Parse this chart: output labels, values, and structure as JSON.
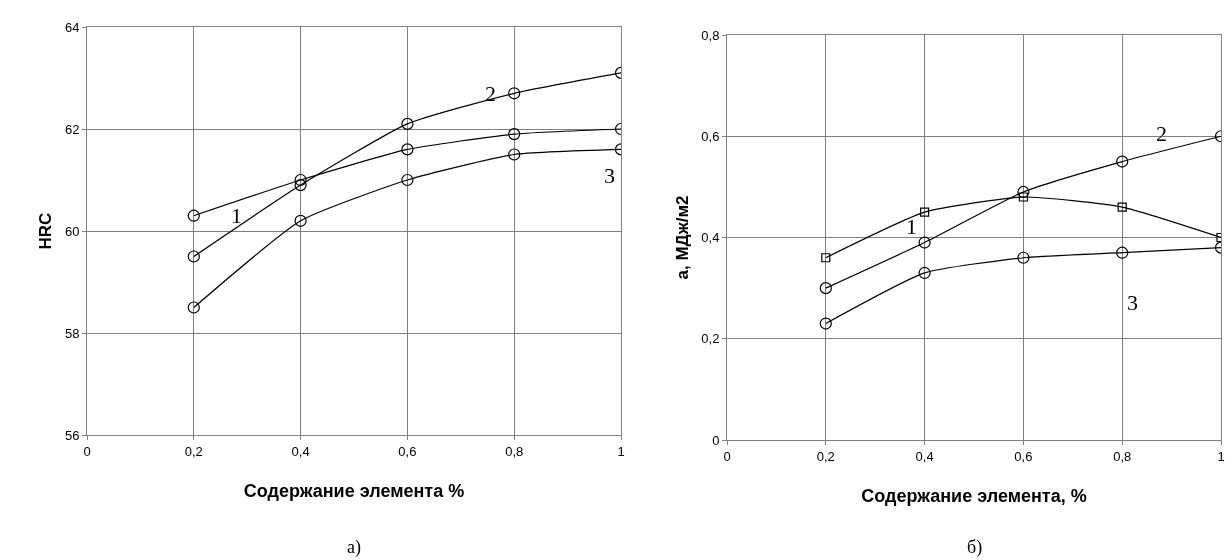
{
  "chart_data": [
    {
      "type": "line",
      "xlabel": "Содержание элемента %",
      "ylabel": "HRC",
      "x": [
        0.2,
        0.4,
        0.6,
        0.8,
        1.0
      ],
      "series": [
        {
          "name": "1",
          "color": "#000000",
          "marker": "circle",
          "values": [
            60.3,
            61.0,
            61.6,
            61.9,
            62.0
          ]
        },
        {
          "name": "2",
          "color": "#000000",
          "marker": "circle",
          "values": [
            59.5,
            60.9,
            62.1,
            62.7,
            63.1
          ]
        },
        {
          "name": "3",
          "color": "#000000",
          "marker": "circle",
          "values": [
            58.5,
            60.2,
            61.0,
            61.5,
            61.6
          ]
        }
      ],
      "xlim": [
        0,
        1
      ],
      "xticks": [
        0,
        {
          "value": 0.2,
          "label": "0,2"
        },
        {
          "value": 0.4,
          "label": "0,4"
        },
        {
          "value": 0.6,
          "label": "0,6"
        },
        {
          "value": 0.8,
          "label": "0,8"
        },
        1
      ],
      "ylim": [
        56,
        64
      ],
      "yticks": [
        56,
        58,
        60,
        62,
        64
      ],
      "grid": true,
      "line_style": "solid",
      "annotations": [
        "а)"
      ]
    },
    {
      "type": "line",
      "xlabel": "Содержание элемента, %",
      "ylabel": "а, МДж/м2",
      "x": [
        0.2,
        0.4,
        0.6,
        0.8,
        1.0
      ],
      "series": [
        {
          "name": "1",
          "color": "#000000",
          "marker": "square",
          "values": [
            0.36,
            0.45,
            0.48,
            0.46,
            0.4
          ]
        },
        {
          "name": "2",
          "color": "#000000",
          "marker": "circle",
          "values": [
            0.3,
            0.39,
            0.49,
            0.55,
            0.6
          ]
        },
        {
          "name": "3",
          "color": "#000000",
          "marker": "circle",
          "values": [
            0.23,
            0.33,
            0.36,
            0.37,
            0.38
          ]
        }
      ],
      "xlim": [
        0,
        1
      ],
      "xticks": [
        0,
        {
          "value": 0.2,
          "label": "0,2"
        },
        {
          "value": 0.4,
          "label": "0,4"
        },
        {
          "value": 0.6,
          "label": "0,6"
        },
        {
          "value": 0.8,
          "label": "0,8"
        },
        1
      ],
      "ylim": [
        0,
        0.8
      ],
      "yticks": [
        0,
        {
          "value": 0.2,
          "label": "0,2"
        },
        {
          "value": 0.4,
          "label": "0,4"
        },
        {
          "value": 0.6,
          "label": "0,6"
        },
        {
          "value": 0.8,
          "label": "0,8"
        }
      ],
      "grid": true,
      "line_style": "solid",
      "annotations": [
        "б)"
      ]
    }
  ]
}
